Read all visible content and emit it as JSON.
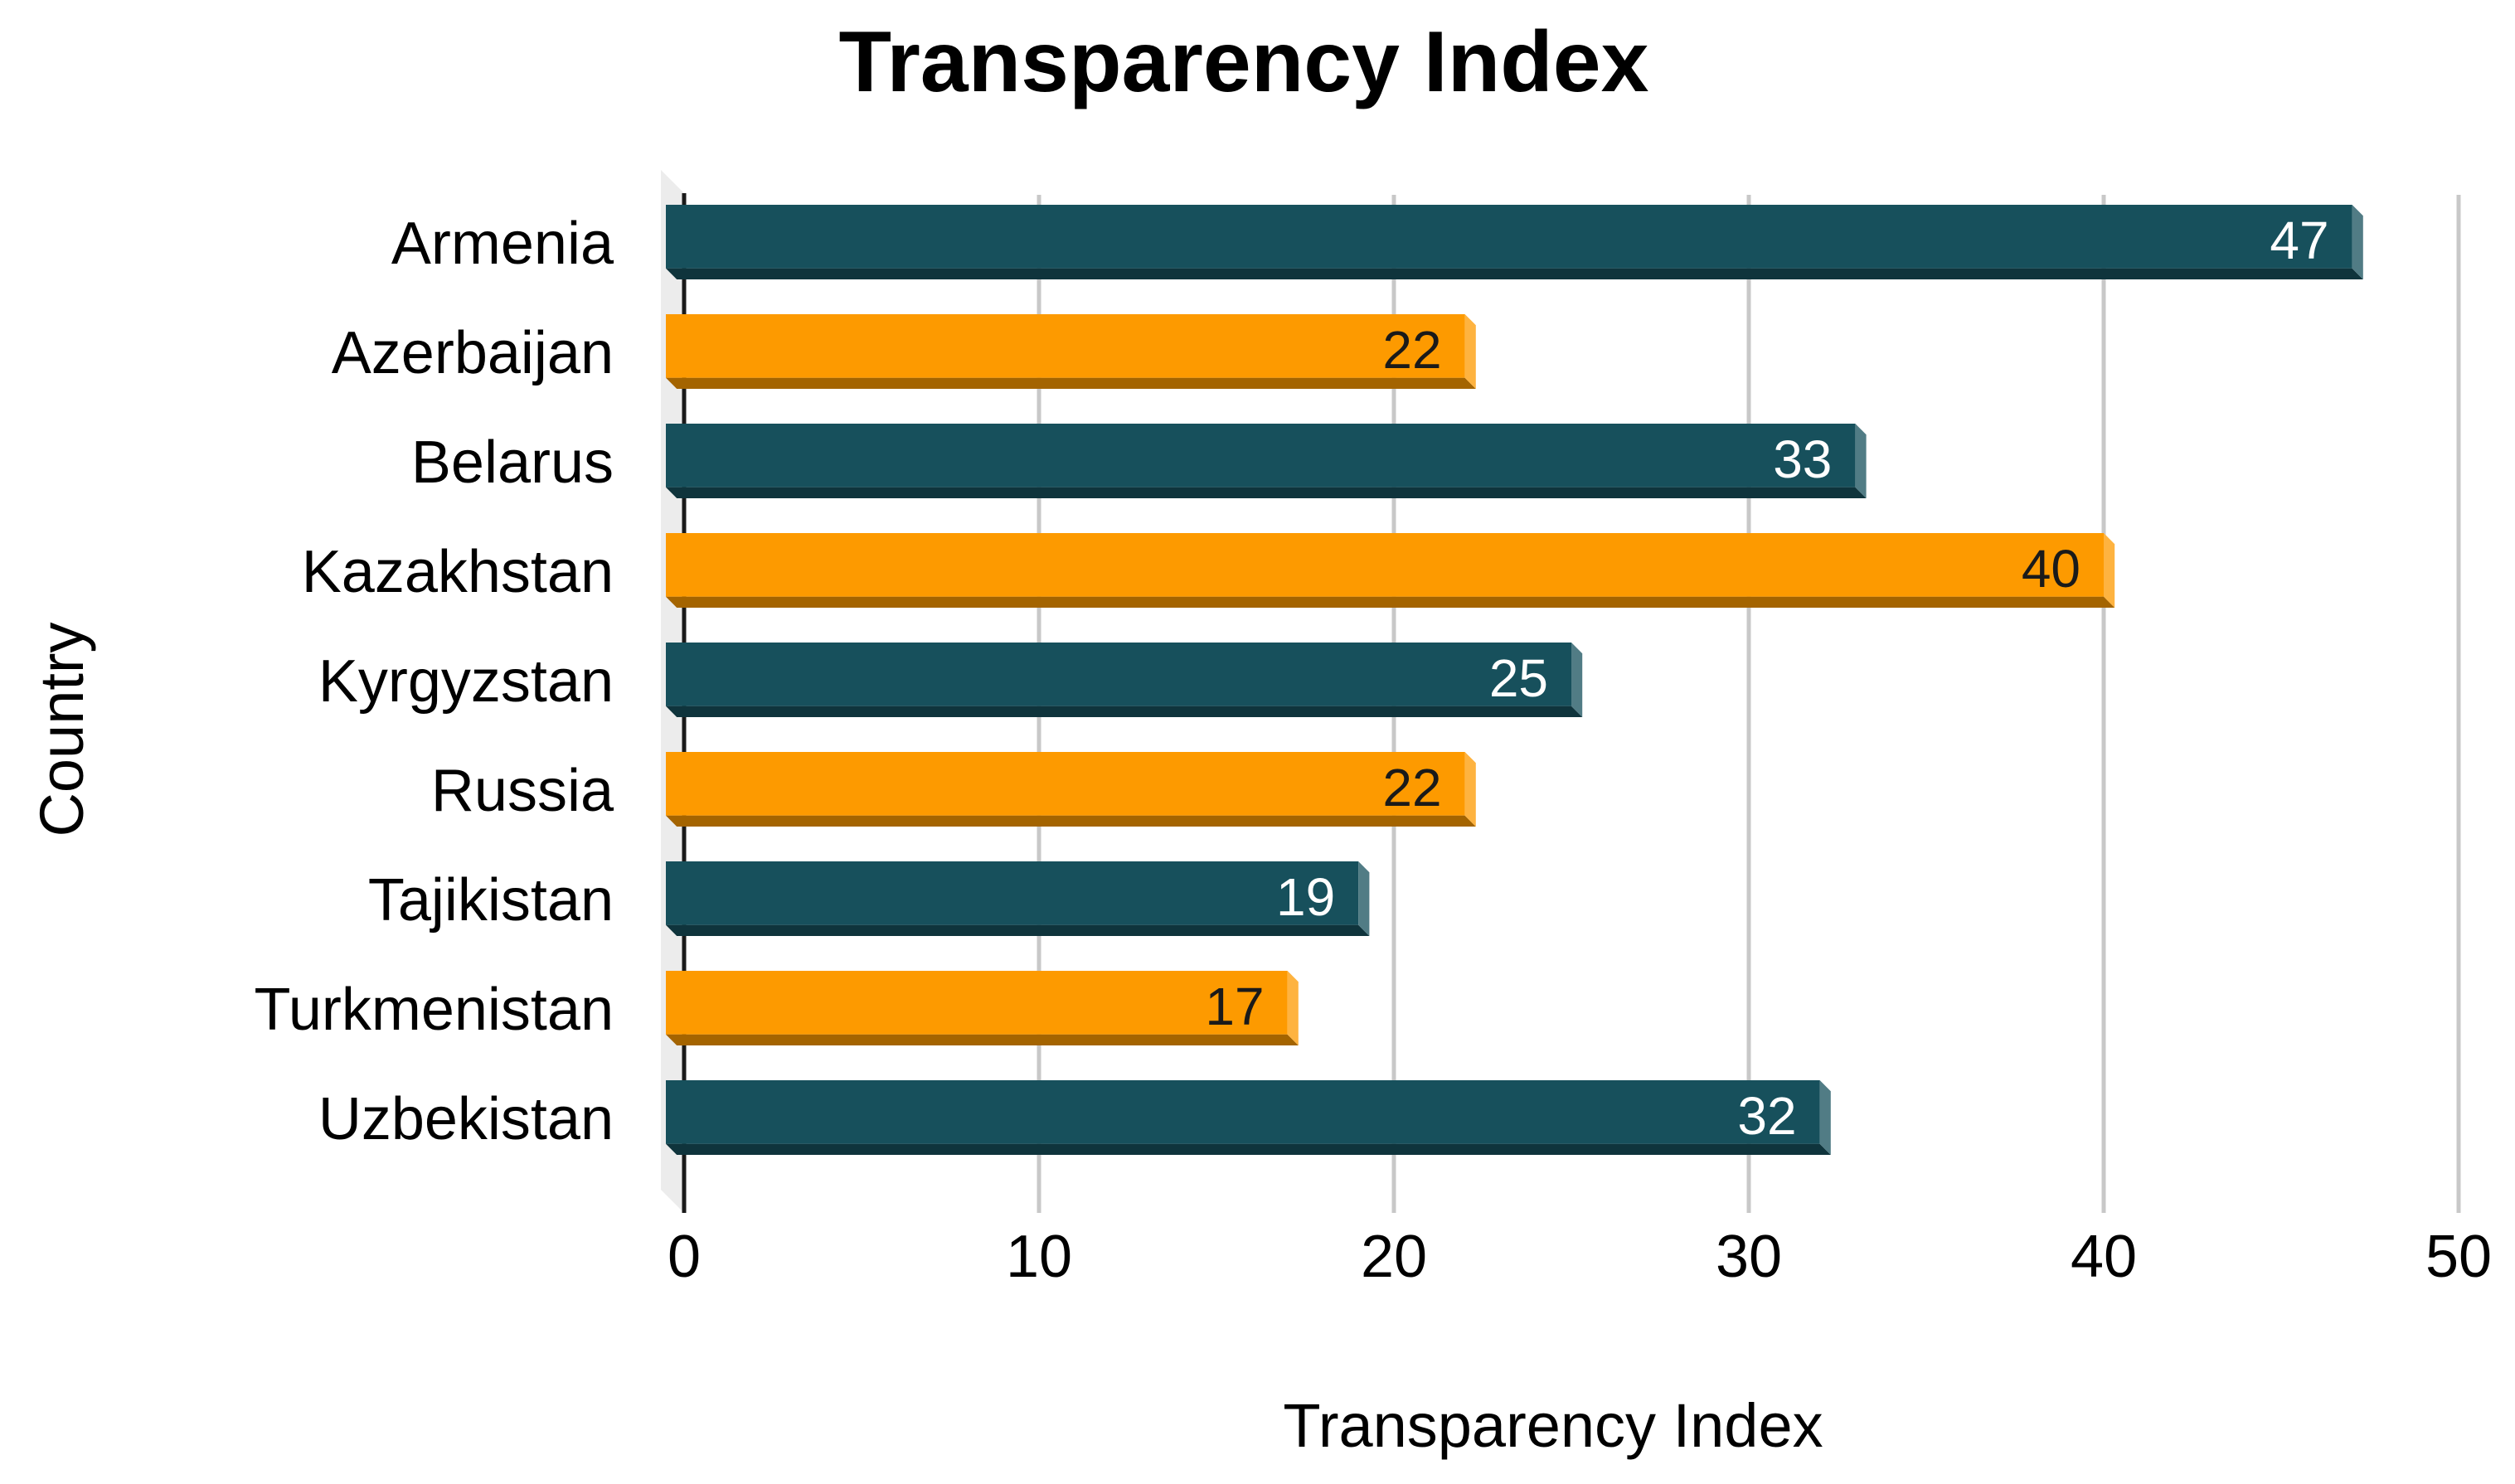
{
  "chart_data": {
    "type": "bar",
    "orientation": "horizontal",
    "title": "Transparency Index",
    "xlabel": "Transparency Index",
    "ylabel": "Country",
    "xlim": [
      0,
      50
    ],
    "x_ticks": [
      0,
      10,
      20,
      30,
      40,
      50
    ],
    "grid": true,
    "legend": "none",
    "categories": [
      "Armenia",
      "Azerbaijan",
      "Belarus",
      "Kazakhstan",
      "Kyrgyzstan",
      "Russia",
      "Tajikistan",
      "Turkmenistan",
      "Uzbekistan"
    ],
    "values": [
      47,
      22,
      33,
      40,
      25,
      22,
      19,
      17,
      32
    ],
    "data_labels": [
      "47",
      "22",
      "33",
      "40",
      "25",
      "22",
      "19",
      "17",
      "32"
    ],
    "colors": {
      "teal": "#17505c",
      "orange": "#fd9a00",
      "label_on_teal": "#ffffff",
      "label_on_orange": "#1a1a1a"
    },
    "bar_color_pattern": [
      "teal",
      "orange",
      "teal",
      "orange",
      "teal",
      "orange",
      "teal",
      "orange",
      "teal"
    ]
  }
}
